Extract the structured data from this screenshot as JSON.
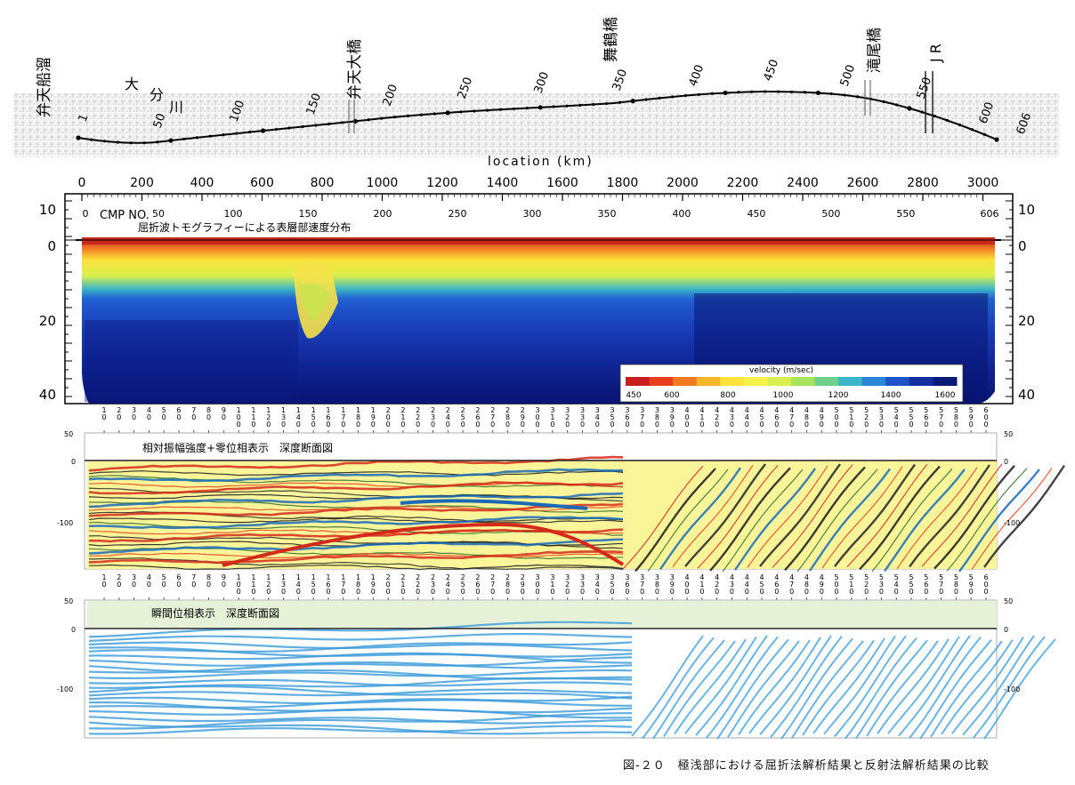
{
  "map": {
    "labels": {
      "benten_funa": "弁天船溜",
      "oita_river": "大分川",
      "bentenohashi": "弁天大橋",
      "maizuru": "舞鶴橋",
      "takio": "滝尾橋",
      "jr": "J R"
    },
    "cmp_marks": [
      "1",
      "50",
      "100",
      "150",
      "200",
      "250",
      "300",
      "350",
      "400",
      "450",
      "500",
      "550",
      "600",
      "606"
    ],
    "axis_label": "location (km)"
  },
  "tomography": {
    "top_ticks": [
      "0",
      "200",
      "400",
      "600",
      "800",
      "1000",
      "1200",
      "1400",
      "1600",
      "1800",
      "2000",
      "2200",
      "2400",
      "2600",
      "2800",
      "3000"
    ],
    "cmp_label": "CMP NO.",
    "cmp_ticks": [
      "0",
      "50",
      "100",
      "150",
      "200",
      "250",
      "300",
      "350",
      "400",
      "450",
      "500",
      "550",
      "606"
    ],
    "title": "屈折波トモグラフィーによる表層部速度分布",
    "depth_ticks_left": [
      "10",
      "0",
      "20",
      "40"
    ],
    "depth_ticks_right": [
      "10",
      "0",
      "20",
      "40"
    ],
    "legend": {
      "title": "velocity (m/sec)",
      "ticks": [
        "450",
        "600",
        "800",
        "1000",
        "1200",
        "1400",
        "1600"
      ],
      "colors": [
        "#c81e1e",
        "#e8401e",
        "#f07a22",
        "#f7b52a",
        "#fde23a",
        "#f6f24a",
        "#d8f04e",
        "#a8e45a",
        "#6cd08a",
        "#3ab6c8",
        "#2a86d8",
        "#1f54c8",
        "#15309e",
        "#0a1a78"
      ]
    }
  },
  "section1": {
    "title": "相対振幅強度+零位相表示　深度断面図",
    "left_ticks": [
      "50",
      "0",
      "-100"
    ],
    "right_ticks": [
      "50",
      "0",
      "-100"
    ]
  },
  "section2": {
    "title": "瞬間位相表示　深度断面図",
    "left_ticks": [
      "50",
      "0",
      "-100"
    ],
    "right_ticks": [
      "50",
      "0",
      "-100"
    ]
  },
  "cmp_row_labels": [
    [
      "1",
      "0"
    ],
    [
      "2",
      "0"
    ],
    [
      "3",
      "0"
    ],
    [
      "4",
      "0"
    ],
    [
      "5",
      "0"
    ],
    [
      "6",
      "0"
    ],
    [
      "7",
      "0"
    ],
    [
      "8",
      "0"
    ],
    [
      "9",
      "0"
    ],
    [
      "1",
      "0",
      "0"
    ],
    [
      "1",
      "1",
      "0"
    ],
    [
      "1",
      "2",
      "0"
    ],
    [
      "1",
      "3",
      "0"
    ],
    [
      "1",
      "4",
      "0"
    ],
    [
      "1",
      "5",
      "0"
    ],
    [
      "1",
      "6",
      "0"
    ],
    [
      "1",
      "7",
      "0"
    ],
    [
      "1",
      "8",
      "0"
    ],
    [
      "1",
      "9",
      "0"
    ],
    [
      "2",
      "0",
      "0"
    ],
    [
      "2",
      "1",
      "0"
    ],
    [
      "2",
      "2",
      "0"
    ],
    [
      "2",
      "3",
      "0"
    ],
    [
      "2",
      "4",
      "0"
    ],
    [
      "2",
      "5",
      "0"
    ],
    [
      "2",
      "6",
      "0"
    ],
    [
      "2",
      "7",
      "0"
    ],
    [
      "2",
      "8",
      "0"
    ],
    [
      "2",
      "9",
      "0"
    ],
    [
      "3",
      "0",
      "0"
    ],
    [
      "3",
      "1",
      "0"
    ],
    [
      "3",
      "2",
      "0"
    ],
    [
      "3",
      "3",
      "0"
    ],
    [
      "3",
      "4",
      "0"
    ],
    [
      "3",
      "5",
      "0"
    ],
    [
      "3",
      "6",
      "0"
    ],
    [
      "3",
      "7",
      "0"
    ],
    [
      "3",
      "8",
      "0"
    ],
    [
      "3",
      "9",
      "0"
    ],
    [
      "4",
      "0",
      "0"
    ],
    [
      "4",
      "1",
      "0"
    ],
    [
      "4",
      "2",
      "0"
    ],
    [
      "4",
      "3",
      "0"
    ],
    [
      "4",
      "4",
      "0"
    ],
    [
      "4",
      "5",
      "0"
    ],
    [
      "4",
      "6",
      "0"
    ],
    [
      "4",
      "7",
      "0"
    ],
    [
      "4",
      "8",
      "0"
    ],
    [
      "4",
      "9",
      "0"
    ],
    [
      "5",
      "0",
      "0"
    ],
    [
      "5",
      "1",
      "0"
    ],
    [
      "5",
      "2",
      "0"
    ],
    [
      "5",
      "3",
      "0"
    ],
    [
      "5",
      "4",
      "0"
    ],
    [
      "5",
      "5",
      "0"
    ],
    [
      "5",
      "6",
      "0"
    ],
    [
      "5",
      "7",
      "0"
    ],
    [
      "5",
      "8",
      "0"
    ],
    [
      "5",
      "9",
      "0"
    ],
    [
      "6",
      "0",
      "0"
    ]
  ],
  "caption": "図-２０　極浅部における屈折法解析結果と反射法解析結果の比較",
  "colors": {
    "yellow": "#f6f24a",
    "blue": "#1a2fa8",
    "navy": "#0a1470",
    "red": "#d42a1a",
    "cyan": "#3a9ad8"
  }
}
